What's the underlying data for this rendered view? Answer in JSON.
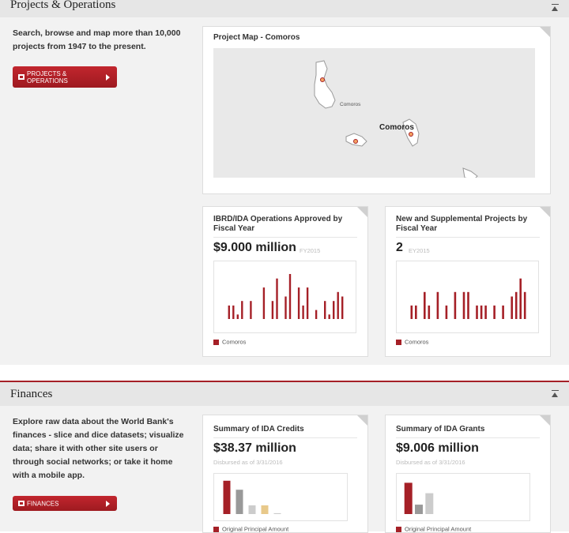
{
  "projects": {
    "title": "Projects & Operations",
    "intro": "Search, browse and map more than 10,000 projects from 1947 to the present.",
    "button_label": "PROJECTS & OPERATIONS",
    "map_card": {
      "title": "Project Map - Comoros",
      "labels": [
        "Comoros",
        "Comoros"
      ]
    },
    "ibrd_card": {
      "title": "IBRD/IDA Operations Approved by Fiscal Year",
      "value": "$9.000 million",
      "year": "FY2015",
      "legend": "Comoros"
    },
    "new_card": {
      "title": "New and Supplemental Projects by Fiscal Year",
      "value": "2",
      "year": "EY2015",
      "legend": "Comoros"
    }
  },
  "finances": {
    "title": "Finances",
    "intro": "Explore raw data about the World Bank's finances - slice and dice datasets; visualize data; share it with other site users or through social networks; or take it home with a mobile app.",
    "button_label": "FINANCES",
    "credits_card": {
      "title": "Summary of IDA Credits",
      "value": "$38.37 million",
      "sub": "Disbursed as of 3/31/2016",
      "legend": "Original Principal Amount"
    },
    "grants_card": {
      "title": "Summary of IDA Grants",
      "value": "$9.006 million",
      "sub": "Disbursed as of 3/31/2016",
      "legend": "Original Principal Amount"
    }
  },
  "colors": {
    "accent": "#a52027",
    "bar_gray": "#999999",
    "bar_light": "#cccccc",
    "bar_tan": "#e8c98a"
  },
  "chart_data": [
    {
      "type": "bar",
      "name_ref": "ibrd_card",
      "values": [
        3,
        3,
        1,
        4,
        0,
        4,
        0,
        0,
        7,
        0,
        4,
        9,
        0,
        5,
        10,
        0,
        7,
        3,
        7,
        0,
        2,
        0,
        4,
        1,
        4,
        6,
        5
      ],
      "ylim": [
        0,
        10
      ]
    },
    {
      "type": "bar",
      "name_ref": "new_card",
      "values": [
        3,
        3,
        0,
        6,
        3,
        0,
        6,
        0,
        3,
        0,
        6,
        0,
        6,
        6,
        0,
        3,
        3,
        3,
        0,
        3,
        0,
        3,
        0,
        5,
        6,
        9,
        6
      ],
      "ylim": [
        0,
        10
      ]
    },
    {
      "type": "bar",
      "name_ref": "credits_card",
      "values": [
        38.37,
        28,
        10,
        10,
        1
      ],
      "colors": [
        "#a52027",
        "#999999",
        "#cccccc",
        "#e8c98a",
        "#cccccc"
      ],
      "ylim": [
        0,
        40
      ]
    },
    {
      "type": "bar",
      "name_ref": "grants_card",
      "values": [
        9.006,
        2.7,
        6
      ],
      "colors": [
        "#a52027",
        "#999999",
        "#cccccc"
      ],
      "ylim": [
        0,
        10
      ]
    }
  ]
}
